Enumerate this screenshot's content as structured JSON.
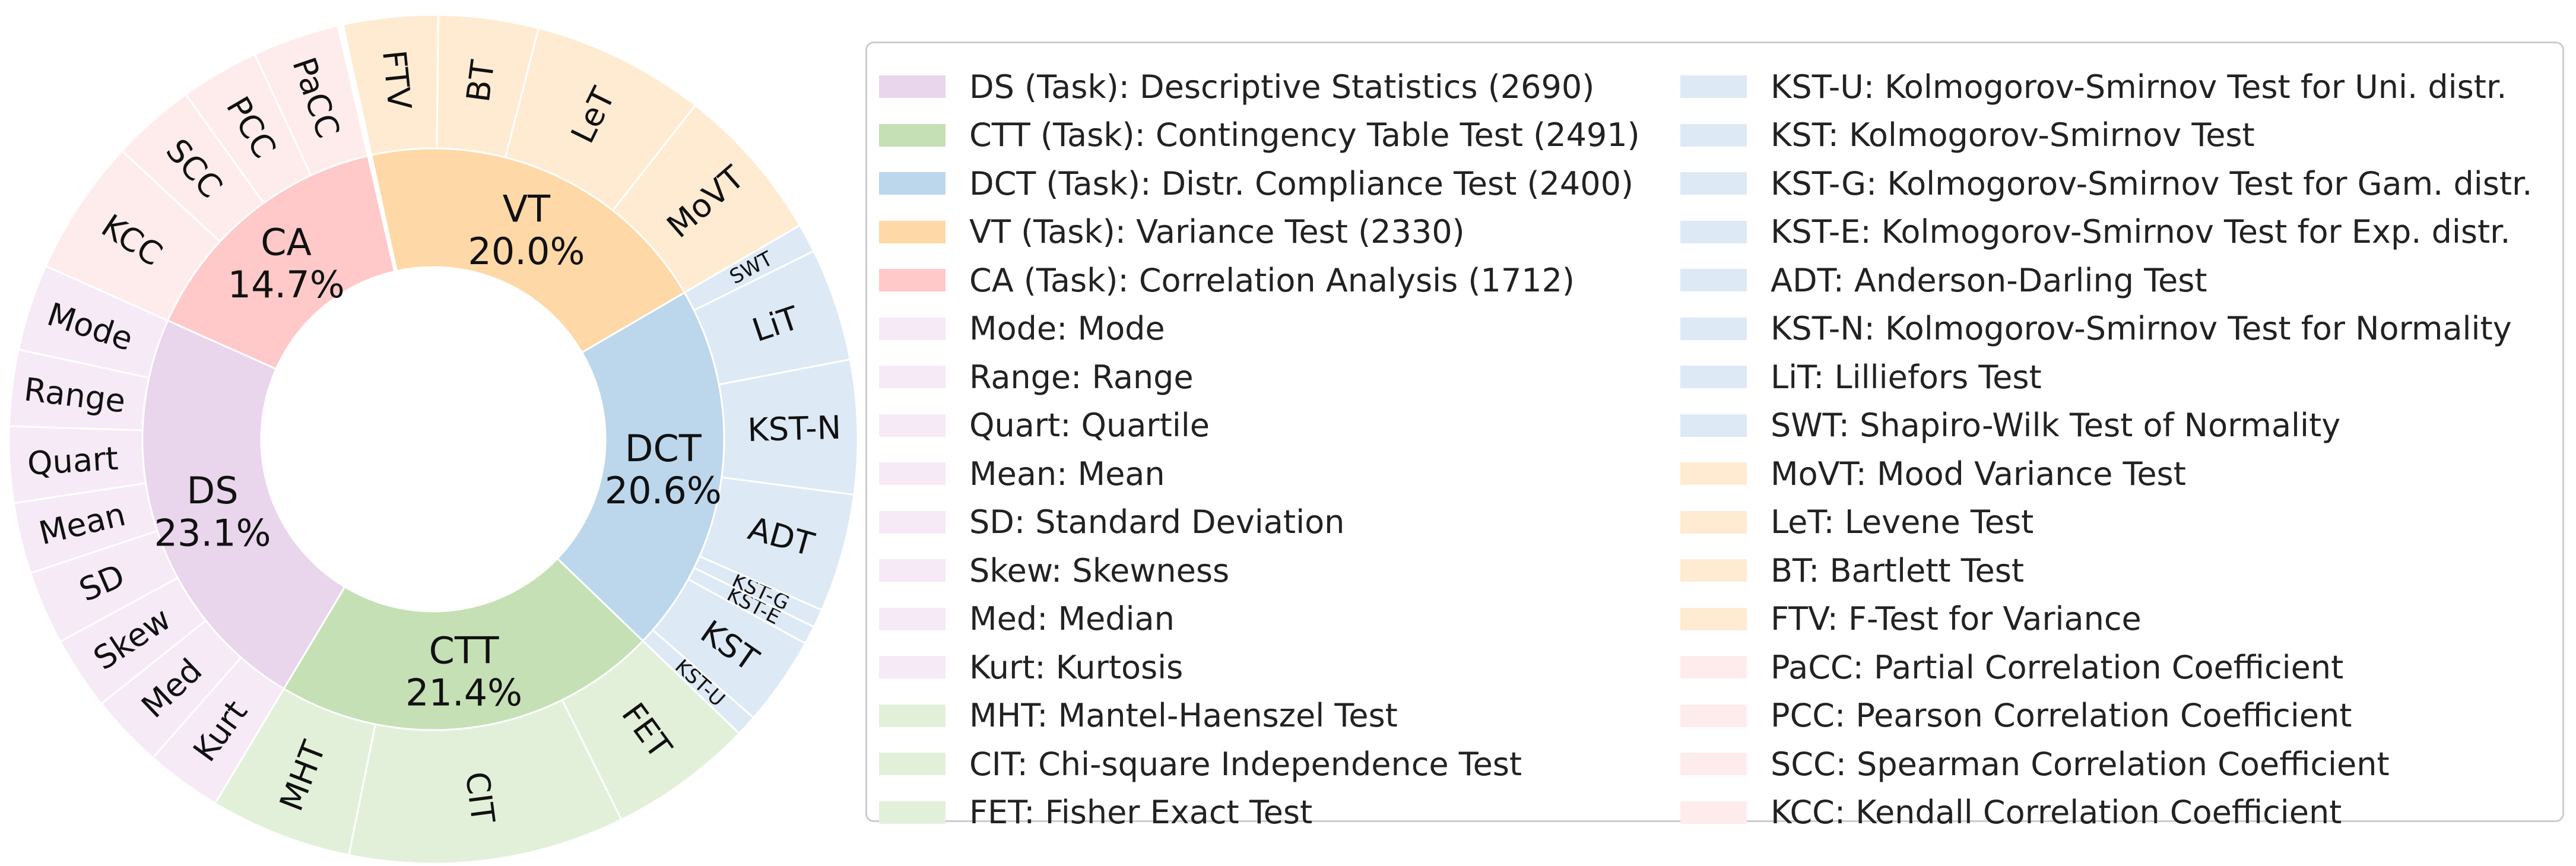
{
  "chart_data": {
    "type": "sunburst",
    "inner_ring": [
      {
        "label": "DS",
        "percent": "23.1%",
        "count": 2690,
        "color": "#e9d5ec"
      },
      {
        "label": "CTT",
        "percent": "21.4%",
        "count": 2491,
        "color": "#c5e0b5"
      },
      {
        "label": "DCT",
        "percent": "20.6%",
        "count": 2400,
        "color": "#bcd7ec"
      },
      {
        "label": "VT",
        "percent": "20.0%",
        "count": 2330,
        "color": "#fed8a6"
      },
      {
        "label": "CA",
        "percent": "14.7%",
        "count": 1712,
        "color": "#fec9c8"
      }
    ],
    "outer_ring": [
      {
        "label": "PaCC",
        "parent": "CA",
        "value": 3.3,
        "color": "#feecec"
      },
      {
        "label": "PCC",
        "parent": "CA",
        "value": 3.0,
        "color": "#feecec"
      },
      {
        "label": "SCC",
        "parent": "CA",
        "value": 3.2,
        "color": "#feecec"
      },
      {
        "label": "KCC",
        "parent": "CA",
        "value": 5.2,
        "color": "#feecec"
      },
      {
        "label": "Mode",
        "parent": "DS",
        "value": 3.3,
        "color": "#f5eaf6"
      },
      {
        "label": "Range",
        "parent": "DS",
        "value": 2.9,
        "color": "#f5eaf6"
      },
      {
        "label": "Quart",
        "parent": "DS",
        "value": 2.9,
        "color": "#f5eaf6"
      },
      {
        "label": "Mean",
        "parent": "DS",
        "value": 2.7,
        "color": "#f5eaf6"
      },
      {
        "label": "SD",
        "parent": "DS",
        "value": 2.8,
        "color": "#f5eaf6"
      },
      {
        "label": "Skew",
        "parent": "DS",
        "value": 2.8,
        "color": "#f5eaf6"
      },
      {
        "label": "Med",
        "parent": "DS",
        "value": 2.8,
        "color": "#f5eaf6"
      },
      {
        "label": "Kurt",
        "parent": "DS",
        "value": 2.9,
        "color": "#f5eaf6"
      },
      {
        "label": "MHT",
        "parent": "CTT",
        "value": 5.4,
        "color": "#e2f0da"
      },
      {
        "label": "CIT",
        "parent": "CTT",
        "value": 10.5,
        "color": "#e2f0da"
      },
      {
        "label": "FET",
        "parent": "CTT",
        "value": 5.5,
        "color": "#e2f0da"
      },
      {
        "label": "KST-U",
        "parent": "DCT",
        "value": 0.8,
        "color": "#dde9f5"
      },
      {
        "label": "KST",
        "parent": "DCT",
        "value": 3.4,
        "color": "#dde9f5"
      },
      {
        "label": "KST-E",
        "parent": "DCT",
        "value": 0.7,
        "color": "#dde9f5"
      },
      {
        "label": "KST-G",
        "parent": "DCT",
        "value": 0.7,
        "color": "#dde9f5"
      },
      {
        "label": "ADT",
        "parent": "DCT",
        "value": 4.5,
        "color": "#dde9f5"
      },
      {
        "label": "KST-N",
        "parent": "DCT",
        "value": 5.1,
        "color": "#dde9f5"
      },
      {
        "label": "LiT",
        "parent": "DCT",
        "value": 4.3,
        "color": "#dde9f5"
      },
      {
        "label": "SWT",
        "parent": "DCT",
        "value": 1.1,
        "color": "#dde9f5"
      },
      {
        "label": "MoVT",
        "parent": "VT",
        "value": 6.0,
        "color": "#feebd2"
      },
      {
        "label": "LeT",
        "parent": "VT",
        "value": 6.6,
        "color": "#feebd2"
      },
      {
        "label": "BT",
        "parent": "VT",
        "value": 3.8,
        "color": "#feebd2"
      },
      {
        "label": "FTV",
        "parent": "VT",
        "value": 3.6,
        "color": "#feebd2"
      }
    ],
    "legend": {
      "columns": [
        [
          {
            "label": "DS (Task): Descriptive Statistics (2690)",
            "color": "#e9d5ec"
          },
          {
            "label": "CTT (Task): Contingency Table Test (2491)",
            "color": "#c5e0b5"
          },
          {
            "label": "DCT (Task): Distr. Compliance Test (2400)",
            "color": "#bcd7ec"
          },
          {
            "label": "VT (Task): Variance Test (2330)",
            "color": "#fed8a6"
          },
          {
            "label": "CA (Task): Correlation Analysis (1712)",
            "color": "#fec9c8"
          },
          {
            "label": "Mode: Mode",
            "color": "#f5eaf6"
          },
          {
            "label": "Range: Range",
            "color": "#f5eaf6"
          },
          {
            "label": "Quart: Quartile",
            "color": "#f5eaf6"
          },
          {
            "label": "Mean: Mean",
            "color": "#f5eaf6"
          },
          {
            "label": "SD: Standard Deviation",
            "color": "#f5eaf6"
          },
          {
            "label": "Skew: Skewness",
            "color": "#f5eaf6"
          },
          {
            "label": "Med: Median",
            "color": "#f5eaf6"
          },
          {
            "label": "Kurt: Kurtosis",
            "color": "#f5eaf6"
          },
          {
            "label": "MHT: Mantel-Haenszel Test",
            "color": "#e2f0da"
          },
          {
            "label": "CIT: Chi-square Independence Test",
            "color": "#e2f0da"
          },
          {
            "label": "FET: Fisher Exact Test",
            "color": "#e2f0da"
          }
        ],
        [
          {
            "label": "KST-U: Kolmogorov-Smirnov Test for Uni. distr.",
            "color": "#dde9f5"
          },
          {
            "label": "KST: Kolmogorov-Smirnov Test",
            "color": "#dde9f5"
          },
          {
            "label": "KST-G: Kolmogorov-Smirnov Test for Gam. distr.",
            "color": "#dde9f5"
          },
          {
            "label": "KST-E: Kolmogorov-Smirnov Test for Exp. distr.",
            "color": "#dde9f5"
          },
          {
            "label": "ADT: Anderson-Darling Test",
            "color": "#dde9f5"
          },
          {
            "label": "KST-N: Kolmogorov-Smirnov Test for Normality",
            "color": "#dde9f5"
          },
          {
            "label": "LiT: Lilliefors Test",
            "color": "#dde9f5"
          },
          {
            "label": "SWT: Shapiro-Wilk Test of Normality",
            "color": "#dde9f5"
          },
          {
            "label": "MoVT: Mood Variance Test",
            "color": "#feebd2"
          },
          {
            "label": "LeT: Levene Test",
            "color": "#feebd2"
          },
          {
            "label": "BT: Bartlett Test",
            "color": "#feebd2"
          },
          {
            "label": "FTV: F-Test for Variance",
            "color": "#feebd2"
          },
          {
            "label": "PaCC: Partial Correlation Coefficient",
            "color": "#feecec"
          },
          {
            "label": "PCC: Pearson Correlation Coefficient",
            "color": "#feecec"
          },
          {
            "label": "SCC: Spearman Correlation Coefficient",
            "color": "#feecec"
          },
          {
            "label": "KCC: Kendall Correlation Coefficient",
            "color": "#feecec"
          }
        ]
      ]
    }
  }
}
